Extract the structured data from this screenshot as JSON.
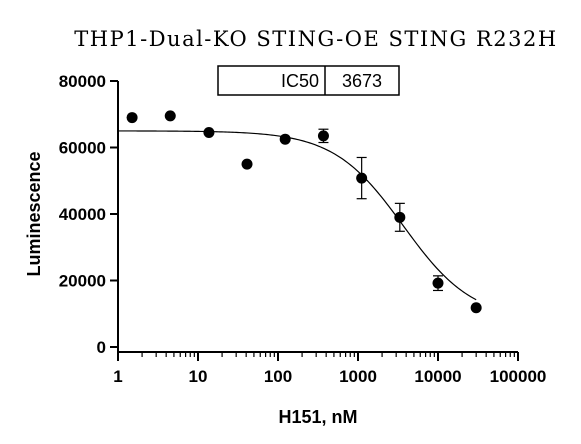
{
  "chart_data": {
    "type": "scatter",
    "title": "THP1-Dual-KO STING-OE STING R232H",
    "xlabel": "H151, nM",
    "ylabel": "Luminescence",
    "xscale": "log",
    "xlim": [
      1,
      100000
    ],
    "ylim": [
      0,
      80000
    ],
    "x_ticks": [
      1,
      10,
      100,
      1000,
      10000,
      100000
    ],
    "x_tick_labels": [
      "1",
      "10",
      "100",
      "1000",
      "10000",
      "100000"
    ],
    "y_ticks": [
      0,
      20000,
      40000,
      60000,
      80000
    ],
    "y_tick_labels": [
      "0",
      "20000",
      "40000",
      "60000",
      "80000"
    ],
    "grid": false,
    "legend": "none",
    "points": [
      {
        "x": 1.5,
        "y": 69000,
        "err": 0
      },
      {
        "x": 4.5,
        "y": 69500,
        "err": 0
      },
      {
        "x": 13.7,
        "y": 64500,
        "err": 0
      },
      {
        "x": 41,
        "y": 55000,
        "err": 0
      },
      {
        "x": 123,
        "y": 62500,
        "err": 0
      },
      {
        "x": 370,
        "y": 63500,
        "err": 2000
      },
      {
        "x": 1111,
        "y": 50800,
        "err": 6200
      },
      {
        "x": 3333,
        "y": 39000,
        "err": 4200
      },
      {
        "x": 10000,
        "y": 19200,
        "err": 2200
      },
      {
        "x": 30000,
        "y": 11800,
        "err": 0
      }
    ],
    "fit": {
      "model": "four-parameter logistic",
      "top": 65000,
      "bottom": 8000,
      "ic50": 3673,
      "hill": 1.0,
      "x_range": [
        1,
        30000
      ]
    },
    "annotation": {
      "label": "IC50",
      "value": "3673"
    }
  }
}
